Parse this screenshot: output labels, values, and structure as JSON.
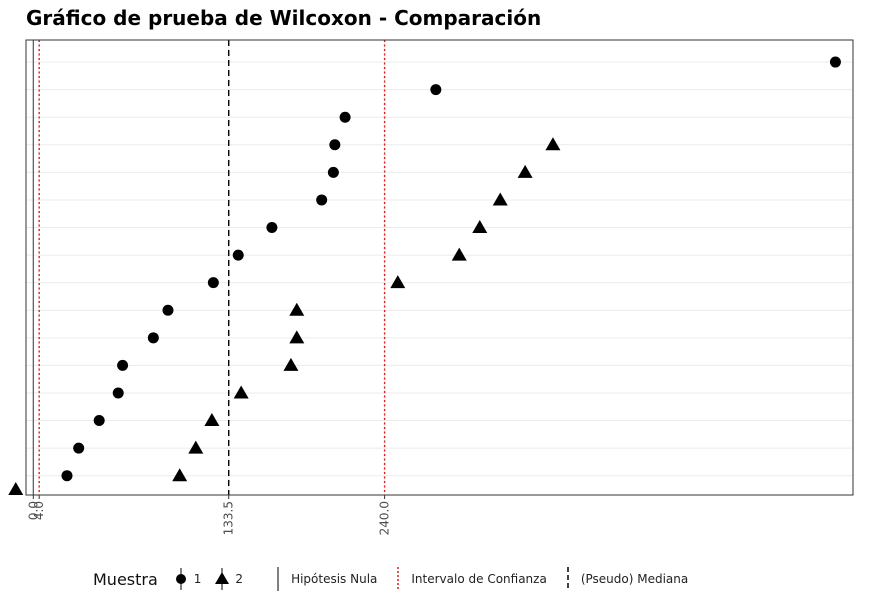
{
  "chart_data": {
    "type": "scatter",
    "title": "Gráfico de prueba de Wilcoxon - Comparación",
    "xlabel": "",
    "ylabel": "",
    "xlim": [
      -5,
      560
    ],
    "ylim": [
      0.3,
      16.8
    ],
    "x_tick_labels": [
      "0.0",
      "4.0",
      "133.5",
      "240.0"
    ],
    "x_tick_values": [
      0,
      4,
      133.5,
      240
    ],
    "grid": true,
    "reference_lines": {
      "null_hypothesis": {
        "value": 0,
        "label": "Hipótesis Nula",
        "style": "solid",
        "color": "#555555"
      },
      "confidence_interval": {
        "values": [
          4,
          240
        ],
        "label": "Intervalo de Confianza",
        "style": "dotted",
        "color": "#e31a1c"
      },
      "pseudo_median": {
        "value": 133.5,
        "label": "(Pseudo) Mediana",
        "style": "dashed",
        "color": "#000000"
      }
    },
    "series": [
      {
        "name": "1",
        "marker": "circle",
        "points": [
          [
            23,
            1
          ],
          [
            31,
            2
          ],
          [
            45,
            3
          ],
          [
            58,
            4
          ],
          [
            61,
            5
          ],
          [
            82,
            6
          ],
          [
            92,
            7
          ],
          [
            123,
            8
          ],
          [
            140,
            9
          ],
          [
            163,
            10
          ],
          [
            197,
            11
          ],
          [
            205,
            12
          ],
          [
            206,
            13
          ],
          [
            213,
            14
          ],
          [
            275,
            15
          ],
          [
            548,
            16
          ]
        ]
      },
      {
        "name": "2",
        "marker": "triangle",
        "points": [
          [
            -12,
            0.5
          ],
          [
            100,
            1
          ],
          [
            111,
            2
          ],
          [
            122,
            3
          ],
          [
            142,
            4
          ],
          [
            176,
            5
          ],
          [
            180,
            6
          ],
          [
            180,
            7
          ],
          [
            249,
            8
          ],
          [
            291,
            9
          ],
          [
            305,
            10
          ],
          [
            319,
            11
          ],
          [
            336,
            12
          ],
          [
            355,
            13
          ]
        ]
      }
    ],
    "legend": {
      "position": "bottom",
      "title": "Muestra",
      "entries": [
        "1",
        "2"
      ],
      "line_entries": [
        "Hipótesis Nula",
        "Intervalo de Confianza",
        "(Pseudo) Mediana"
      ]
    }
  }
}
